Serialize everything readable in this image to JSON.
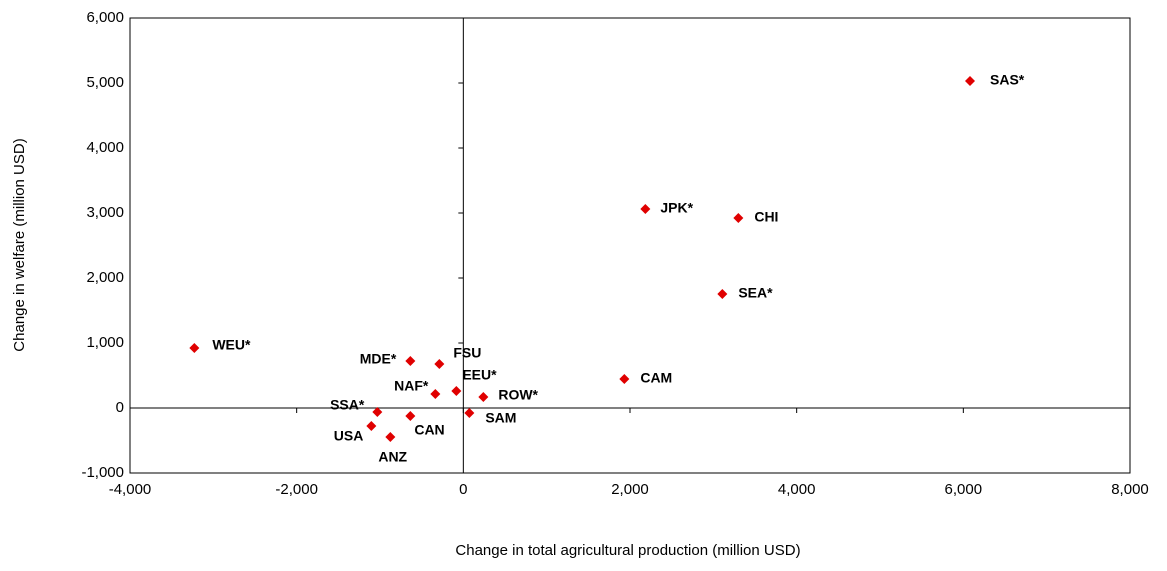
{
  "chart_data": {
    "type": "scatter",
    "x_label": "Change in total agricultural production (million USD)",
    "y_label": "Change in welfare (million USD)",
    "color": "#e00000",
    "labels": [
      "SAS*",
      "JPK*",
      "CHI",
      "SEA*",
      "CAM",
      "WEU*",
      "MDE*",
      "FSU",
      "EEU*",
      "NAF*",
      "ROW*",
      "SAM",
      "SSA*",
      "CAN",
      "USA",
      "ANZ"
    ],
    "x": [
      6080,
      2184,
      3300,
      3108,
      1932,
      -3228,
      -636,
      -288,
      -84,
      -336,
      240,
      72,
      -1032,
      -636,
      -1104,
      -876
    ],
    "y": [
      5031,
      3062,
      2923,
      1754,
      446,
      923,
      723,
      677,
      262,
      215,
      169,
      -77,
      -62,
      -123,
      -277,
      -446
    ],
    "xlim": [
      -4000,
      8000
    ],
    "xticks": [
      {
        "value": -4000,
        "label": "-4,000"
      },
      {
        "value": -2000,
        "label": "-2,000"
      },
      0,
      {
        "value": 2000,
        "label": "2,000"
      },
      {
        "value": 4000,
        "label": "4,000"
      },
      {
        "value": 6000,
        "label": "6,000"
      },
      {
        "value": 8000,
        "label": "8,000"
      }
    ],
    "ylim": [
      -1000,
      6000
    ],
    "yticks": [
      {
        "value": -1000,
        "label": "-1,000"
      },
      0,
      {
        "value": 1000,
        "label": "1,000"
      },
      {
        "value": 2000,
        "label": "2,000"
      },
      {
        "value": 3000,
        "label": "3,000"
      },
      {
        "value": 4000,
        "label": "4,000"
      },
      {
        "value": 5000,
        "label": "5,000"
      },
      {
        "value": 6000,
        "label": "6,000"
      }
    ]
  }
}
